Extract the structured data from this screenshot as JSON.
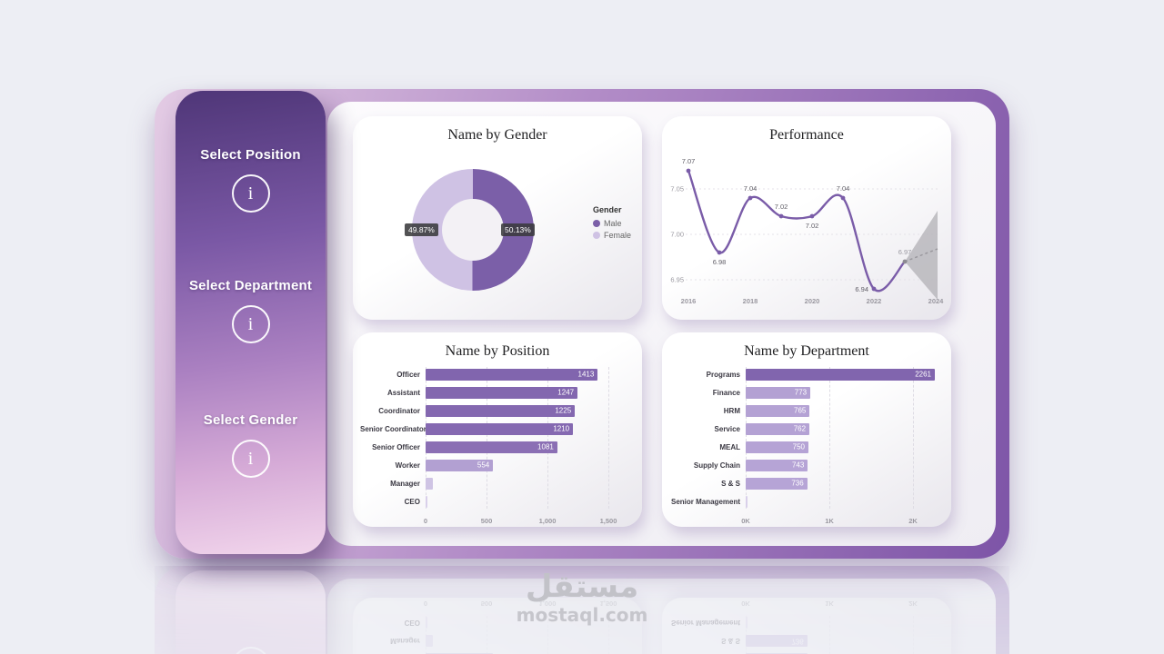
{
  "sidebar": {
    "slicers": [
      {
        "label": "Select Position"
      },
      {
        "label": "Select Department"
      },
      {
        "label": "Select Gender"
      }
    ]
  },
  "watermark": {
    "logo": "مستقل",
    "site": "mostaql.com"
  },
  "colors": {
    "male": "#7b5fa8",
    "female": "#cfc2e4",
    "line": "#7a5ca8",
    "forecast": "#b9b7bc",
    "accent_dark": "#8165ae",
    "accent_light": "#b3a1d3"
  },
  "chart_data": [
    {
      "type": "pie",
      "title": "Name by Gender",
      "legend_title": "Gender",
      "legend": [
        {
          "label": "Male",
          "color": "#7b5fa8"
        },
        {
          "label": "Female",
          "color": "#cfc2e4"
        }
      ],
      "values": [
        50.13,
        49.87
      ],
      "value_labels": [
        "50.13%",
        "49.87%"
      ]
    },
    {
      "type": "line",
      "title": "Performance",
      "x_ticks": [
        "2016",
        "2018",
        "2020",
        "2022",
        "2024"
      ],
      "y_ticks": [
        "6.95",
        "7.00",
        "7.05"
      ],
      "ylim": [
        6.93,
        7.09
      ],
      "points": [
        {
          "x": "2016",
          "value": 7.07,
          "label": "7.07",
          "label_pos": "above"
        },
        {
          "x": "2017",
          "value": 6.98,
          "label": "6.98",
          "label_pos": "below"
        },
        {
          "x": "2018",
          "value": 7.04,
          "label": "7.04",
          "label_pos": "above"
        },
        {
          "x": "2019",
          "value": 7.02,
          "label": "7.02",
          "label_pos": "above"
        },
        {
          "x": "2020",
          "value": 7.02,
          "label": "7.02",
          "label_pos": "below"
        },
        {
          "x": "2021",
          "value": 7.04,
          "label": "7.04",
          "label_pos": "above"
        },
        {
          "x": "2022",
          "value": 6.94,
          "label": "6.94",
          "label_pos": "left"
        },
        {
          "x": "2023",
          "value": 6.97,
          "label": "6.97",
          "label_pos": "above",
          "forecast": true
        }
      ],
      "forecast_region": {
        "start": "2023",
        "end": "2024"
      }
    },
    {
      "type": "bar",
      "orientation": "horizontal",
      "title": "Name by Position",
      "xmax": 1500,
      "x_ticks": [
        {
          "label": "0",
          "value": 0
        },
        {
          "label": "500",
          "value": 500
        },
        {
          "label": "1,000",
          "value": 1000
        },
        {
          "label": "1,500",
          "value": 1500
        }
      ],
      "rows": [
        {
          "category": "Officer",
          "value": 1413,
          "value_label": "1413",
          "color": "#8165ae"
        },
        {
          "category": "Assistant",
          "value": 1247,
          "value_label": "1247",
          "color": "#8367af"
        },
        {
          "category": "Coordinator",
          "value": 1225,
          "value_label": "1225",
          "color": "#8468b0"
        },
        {
          "category": "Senior Coordinator",
          "value": 1210,
          "value_label": "1210",
          "color": "#8569b1"
        },
        {
          "category": "Senior Officer",
          "value": 1081,
          "value_label": "1081",
          "color": "#8b6fb4"
        },
        {
          "category": "Worker",
          "value": 554,
          "value_label": "554",
          "color": "#b2a0d2"
        },
        {
          "category": "Manager",
          "value": 60,
          "value_label": "",
          "color": "#cfc4e4"
        },
        {
          "category": "CEO",
          "value": 14,
          "value_label": "",
          "color": "#d9d0ea"
        }
      ]
    },
    {
      "type": "bar",
      "orientation": "horizontal",
      "title": "Name by Department",
      "xmax": 2300,
      "x_ticks": [
        {
          "label": "0K",
          "value": 0
        },
        {
          "label": "1K",
          "value": 1000
        },
        {
          "label": "2K",
          "value": 2000
        }
      ],
      "rows": [
        {
          "category": "Programs",
          "value": 2261,
          "value_label": "2261",
          "color": "#8165ae"
        },
        {
          "category": "Finance",
          "value": 773,
          "value_label": "773",
          "color": "#b3a1d3"
        },
        {
          "category": "HRM",
          "value": 765,
          "value_label": "765",
          "color": "#b4a2d4"
        },
        {
          "category": "Service",
          "value": 762,
          "value_label": "762",
          "color": "#b4a2d4"
        },
        {
          "category": "MEAL",
          "value": 750,
          "value_label": "750",
          "color": "#b5a3d5"
        },
        {
          "category": "Supply Chain",
          "value": 743,
          "value_label": "743",
          "color": "#b6a4d6"
        },
        {
          "category": "S & S",
          "value": 736,
          "value_label": "736",
          "color": "#b6a4d6"
        },
        {
          "category": "Senior Management",
          "value": 8,
          "value_label": "",
          "color": "#d9d0ea"
        }
      ]
    }
  ]
}
